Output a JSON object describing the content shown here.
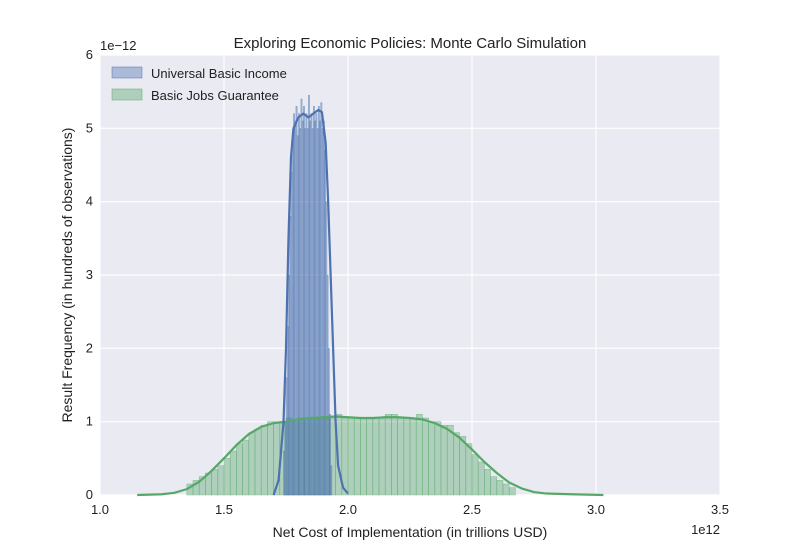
{
  "chart_data": {
    "type": "histogram",
    "title": "Exploring Economic Policies: Monte Carlo Simulation",
    "xlabel": "Net Cost of Implementation (in trillions USD)",
    "ylabel": "Result Frequency (in hundreds of observations)",
    "x_offset_text": "1e12",
    "y_offset_text": "1e−12",
    "xlim": [
      1.0,
      3.5
    ],
    "ylim": [
      0,
      6
    ],
    "x_ticks": [
      "1.0",
      "1.5",
      "2.0",
      "2.5",
      "3.0",
      "3.5"
    ],
    "y_ticks": [
      "0",
      "1",
      "2",
      "3",
      "4",
      "5",
      "6"
    ],
    "grid": true,
    "legend_position": "top-left",
    "series": [
      {
        "name": "Universal Basic Income",
        "color": "#4c72b0",
        "bar_width": 0.005,
        "bins": [
          [
            1.74,
            0.6
          ],
          [
            1.745,
            1.0
          ],
          [
            1.75,
            1.6
          ],
          [
            1.755,
            2.3
          ],
          [
            1.76,
            3.0
          ],
          [
            1.765,
            3.8
          ],
          [
            1.77,
            4.4
          ],
          [
            1.775,
            4.9
          ],
          [
            1.78,
            5.2
          ],
          [
            1.785,
            5.1
          ],
          [
            1.79,
            5.3
          ],
          [
            1.795,
            4.9
          ],
          [
            1.8,
            5.2
          ],
          [
            1.805,
            5.0
          ],
          [
            1.81,
            5.4
          ],
          [
            1.815,
            5.1
          ],
          [
            1.82,
            5.3
          ],
          [
            1.825,
            5.0
          ],
          [
            1.83,
            5.2
          ],
          [
            1.835,
            5.0
          ],
          [
            1.84,
            5.45
          ],
          [
            1.845,
            5.1
          ],
          [
            1.85,
            5.2
          ],
          [
            1.855,
            5.0
          ],
          [
            1.86,
            5.3
          ],
          [
            1.865,
            5.1
          ],
          [
            1.87,
            5.2
          ],
          [
            1.875,
            5.0
          ],
          [
            1.88,
            5.3
          ],
          [
            1.885,
            5.1
          ],
          [
            1.89,
            5.35
          ],
          [
            1.895,
            5.0
          ],
          [
            1.9,
            5.1
          ],
          [
            1.905,
            4.7
          ],
          [
            1.91,
            4.0
          ],
          [
            1.915,
            3.0
          ],
          [
            1.92,
            2.0
          ],
          [
            1.925,
            1.1
          ],
          [
            1.93,
            0.4
          ]
        ],
        "kde": [
          [
            1.7,
            0.0
          ],
          [
            1.72,
            0.2
          ],
          [
            1.74,
            1.0
          ],
          [
            1.75,
            2.0
          ],
          [
            1.76,
            3.5
          ],
          [
            1.77,
            4.6
          ],
          [
            1.78,
            5.0
          ],
          [
            1.8,
            5.15
          ],
          [
            1.82,
            5.2
          ],
          [
            1.84,
            5.15
          ],
          [
            1.86,
            5.2
          ],
          [
            1.88,
            5.25
          ],
          [
            1.895,
            5.22
          ],
          [
            1.91,
            4.8
          ],
          [
            1.92,
            4.0
          ],
          [
            1.93,
            3.0
          ],
          [
            1.94,
            2.0
          ],
          [
            1.95,
            1.0
          ],
          [
            1.96,
            0.4
          ],
          [
            1.98,
            0.1
          ],
          [
            2.0,
            0.02
          ]
        ]
      },
      {
        "name": "Basic Jobs Guarantee",
        "color": "#55a868",
        "bar_width": 0.025,
        "bins": [
          [
            1.35,
            0.15
          ],
          [
            1.375,
            0.2
          ],
          [
            1.4,
            0.25
          ],
          [
            1.425,
            0.3
          ],
          [
            1.45,
            0.35
          ],
          [
            1.475,
            0.4
          ],
          [
            1.5,
            0.5
          ],
          [
            1.525,
            0.6
          ],
          [
            1.55,
            0.7
          ],
          [
            1.575,
            0.75
          ],
          [
            1.6,
            0.85
          ],
          [
            1.625,
            0.9
          ],
          [
            1.65,
            0.95
          ],
          [
            1.675,
            1.0
          ],
          [
            1.7,
            1.0
          ],
          [
            1.725,
            1.0
          ],
          [
            1.75,
            1.05
          ],
          [
            1.775,
            1.0
          ],
          [
            1.8,
            1.05
          ],
          [
            1.825,
            1.05
          ],
          [
            1.85,
            1.05
          ],
          [
            1.875,
            1.05
          ],
          [
            1.9,
            1.05
          ],
          [
            1.925,
            1.05
          ],
          [
            1.95,
            1.1
          ],
          [
            1.975,
            1.05
          ],
          [
            2.0,
            1.05
          ],
          [
            2.025,
            1.05
          ],
          [
            2.05,
            1.05
          ],
          [
            2.075,
            1.05
          ],
          [
            2.1,
            1.05
          ],
          [
            2.125,
            1.05
          ],
          [
            2.15,
            1.1
          ],
          [
            2.175,
            1.1
          ],
          [
            2.2,
            1.05
          ],
          [
            2.225,
            1.05
          ],
          [
            2.25,
            1.05
          ],
          [
            2.275,
            1.1
          ],
          [
            2.3,
            1.05
          ],
          [
            2.325,
            1.0
          ],
          [
            2.35,
            1.0
          ],
          [
            2.375,
            0.95
          ],
          [
            2.4,
            0.95
          ],
          [
            2.425,
            0.85
          ],
          [
            2.45,
            0.8
          ],
          [
            2.475,
            0.7
          ],
          [
            2.5,
            0.55
          ],
          [
            2.525,
            0.45
          ],
          [
            2.55,
            0.35
          ],
          [
            2.575,
            0.25
          ],
          [
            2.6,
            0.2
          ],
          [
            2.625,
            0.15
          ],
          [
            2.65,
            0.1
          ]
        ],
        "kde": [
          [
            1.15,
            0.0
          ],
          [
            1.25,
            0.01
          ],
          [
            1.3,
            0.03
          ],
          [
            1.35,
            0.08
          ],
          [
            1.4,
            0.18
          ],
          [
            1.45,
            0.33
          ],
          [
            1.5,
            0.5
          ],
          [
            1.55,
            0.68
          ],
          [
            1.6,
            0.83
          ],
          [
            1.65,
            0.93
          ],
          [
            1.7,
            0.98
          ],
          [
            1.75,
            1.0
          ],
          [
            1.8,
            1.03
          ],
          [
            1.85,
            1.05
          ],
          [
            1.9,
            1.06
          ],
          [
            1.95,
            1.07
          ],
          [
            2.0,
            1.06
          ],
          [
            2.05,
            1.05
          ],
          [
            2.1,
            1.05
          ],
          [
            2.15,
            1.06
          ],
          [
            2.2,
            1.06
          ],
          [
            2.25,
            1.05
          ],
          [
            2.3,
            1.03
          ],
          [
            2.35,
            0.98
          ],
          [
            2.4,
            0.9
          ],
          [
            2.45,
            0.78
          ],
          [
            2.5,
            0.62
          ],
          [
            2.55,
            0.45
          ],
          [
            2.6,
            0.3
          ],
          [
            2.65,
            0.17
          ],
          [
            2.7,
            0.09
          ],
          [
            2.75,
            0.04
          ],
          [
            2.8,
            0.02
          ],
          [
            2.9,
            0.01
          ],
          [
            3.03,
            0.0
          ]
        ]
      }
    ]
  }
}
